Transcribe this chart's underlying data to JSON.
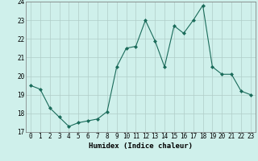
{
  "x": [
    0,
    1,
    2,
    3,
    4,
    5,
    6,
    7,
    8,
    9,
    10,
    11,
    12,
    13,
    14,
    15,
    16,
    17,
    18,
    19,
    20,
    21,
    22,
    23
  ],
  "y": [
    19.5,
    19.3,
    18.3,
    17.8,
    17.3,
    17.5,
    17.6,
    17.7,
    18.1,
    20.5,
    21.5,
    21.6,
    23.0,
    21.9,
    20.5,
    22.7,
    22.3,
    23.0,
    23.8,
    20.5,
    20.1,
    20.1,
    19.2,
    19.0
  ],
  "line_color": "#1a6b5a",
  "marker": "D",
  "marker_size": 2.0,
  "bg_color": "#cff0eb",
  "grid_color": "#b0cdc8",
  "xlabel": "Humidex (Indice chaleur)",
  "xlim": [
    -0.5,
    23.5
  ],
  "ylim": [
    17,
    24
  ],
  "yticks": [
    17,
    18,
    19,
    20,
    21,
    22,
    23,
    24
  ],
  "xticks": [
    0,
    1,
    2,
    3,
    4,
    5,
    6,
    7,
    8,
    9,
    10,
    11,
    12,
    13,
    14,
    15,
    16,
    17,
    18,
    19,
    20,
    21,
    22,
    23
  ],
  "xtick_labels": [
    "0",
    "1",
    "2",
    "3",
    "4",
    "5",
    "6",
    "7",
    "8",
    "9",
    "10",
    "11",
    "12",
    "13",
    "14",
    "15",
    "16",
    "17",
    "18",
    "19",
    "20",
    "21",
    "22",
    "23"
  ],
  "label_fontsize": 6.5,
  "tick_fontsize": 5.5
}
